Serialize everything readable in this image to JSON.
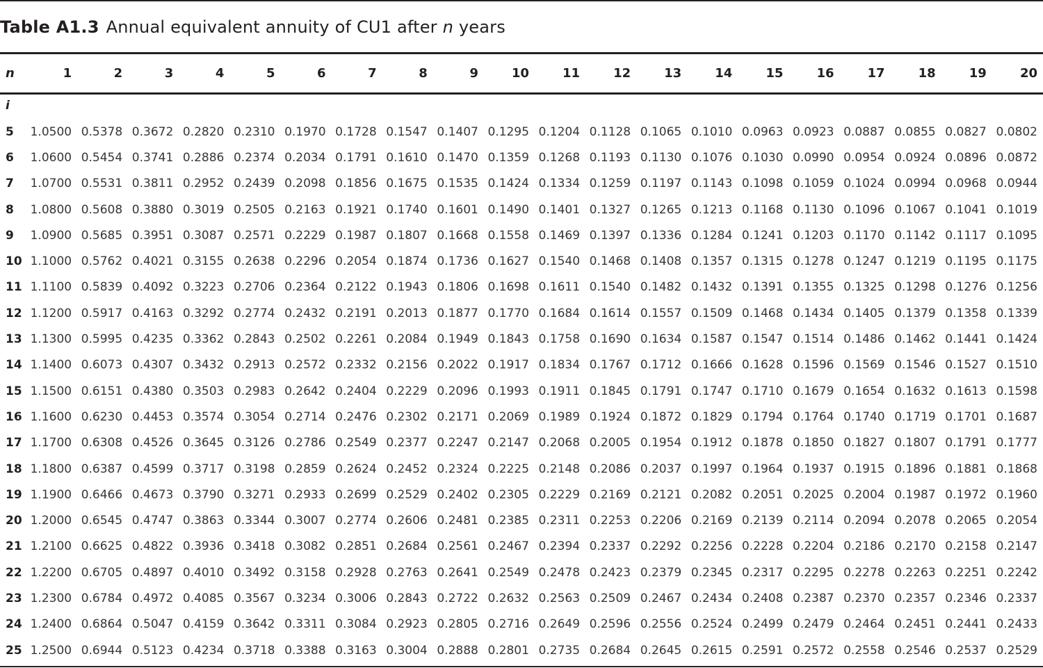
{
  "caption": {
    "label": "Table A1.3",
    "title_prefix": "Annual equivalent annuity of CU1 after",
    "title_var": "n",
    "title_suffix": "years"
  },
  "table": {
    "row_var_label": "n",
    "rate_label": "i",
    "columns": [
      "1",
      "2",
      "3",
      "4",
      "5",
      "6",
      "7",
      "8",
      "9",
      "10",
      "11",
      "12",
      "13",
      "14",
      "15",
      "16",
      "17",
      "18",
      "19",
      "20"
    ],
    "rows": [
      {
        "rate": "5",
        "values": [
          "1.0500",
          "0.5378",
          "0.3672",
          "0.2820",
          "0.2310",
          "0.1970",
          "0.1728",
          "0.1547",
          "0.1407",
          "0.1295",
          "0.1204",
          "0.1128",
          "0.1065",
          "0.1010",
          "0.0963",
          "0.0923",
          "0.0887",
          "0.0855",
          "0.0827",
          "0.0802"
        ]
      },
      {
        "rate": "6",
        "values": [
          "1.0600",
          "0.5454",
          "0.3741",
          "0.2886",
          "0.2374",
          "0.2034",
          "0.1791",
          "0.1610",
          "0.1470",
          "0.1359",
          "0.1268",
          "0.1193",
          "0.1130",
          "0.1076",
          "0.1030",
          "0.0990",
          "0.0954",
          "0.0924",
          "0.0896",
          "0.0872"
        ]
      },
      {
        "rate": "7",
        "values": [
          "1.0700",
          "0.5531",
          "0.3811",
          "0.2952",
          "0.2439",
          "0.2098",
          "0.1856",
          "0.1675",
          "0.1535",
          "0.1424",
          "0.1334",
          "0.1259",
          "0.1197",
          "0.1143",
          "0.1098",
          "0.1059",
          "0.1024",
          "0.0994",
          "0.0968",
          "0.0944"
        ]
      },
      {
        "rate": "8",
        "values": [
          "1.0800",
          "0.5608",
          "0.3880",
          "0.3019",
          "0.2505",
          "0.2163",
          "0.1921",
          "0.1740",
          "0.1601",
          "0.1490",
          "0.1401",
          "0.1327",
          "0.1265",
          "0.1213",
          "0.1168",
          "0.1130",
          "0.1096",
          "0.1067",
          "0.1041",
          "0.1019"
        ]
      },
      {
        "rate": "9",
        "values": [
          "1.0900",
          "0.5685",
          "0.3951",
          "0.3087",
          "0.2571",
          "0.2229",
          "0.1987",
          "0.1807",
          "0.1668",
          "0.1558",
          "0.1469",
          "0.1397",
          "0.1336",
          "0.1284",
          "0.1241",
          "0.1203",
          "0.1170",
          "0.1142",
          "0.1117",
          "0.1095"
        ]
      },
      {
        "rate": "10",
        "values": [
          "1.1000",
          "0.5762",
          "0.4021",
          "0.3155",
          "0.2638",
          "0.2296",
          "0.2054",
          "0.1874",
          "0.1736",
          "0.1627",
          "0.1540",
          "0.1468",
          "0.1408",
          "0.1357",
          "0.1315",
          "0.1278",
          "0.1247",
          "0.1219",
          "0.1195",
          "0.1175"
        ]
      },
      {
        "rate": "11",
        "values": [
          "1.1100",
          "0.5839",
          "0.4092",
          "0.3223",
          "0.2706",
          "0.2364",
          "0.2122",
          "0.1943",
          "0.1806",
          "0.1698",
          "0.1611",
          "0.1540",
          "0.1482",
          "0.1432",
          "0.1391",
          "0.1355",
          "0.1325",
          "0.1298",
          "0.1276",
          "0.1256"
        ]
      },
      {
        "rate": "12",
        "values": [
          "1.1200",
          "0.5917",
          "0.4163",
          "0.3292",
          "0.2774",
          "0.2432",
          "0.2191",
          "0.2013",
          "0.1877",
          "0.1770",
          "0.1684",
          "0.1614",
          "0.1557",
          "0.1509",
          "0.1468",
          "0.1434",
          "0.1405",
          "0.1379",
          "0.1358",
          "0.1339"
        ]
      },
      {
        "rate": "13",
        "values": [
          "1.1300",
          "0.5995",
          "0.4235",
          "0.3362",
          "0.2843",
          "0.2502",
          "0.2261",
          "0.2084",
          "0.1949",
          "0.1843",
          "0.1758",
          "0.1690",
          "0.1634",
          "0.1587",
          "0.1547",
          "0.1514",
          "0.1486",
          "0.1462",
          "0.1441",
          "0.1424"
        ]
      },
      {
        "rate": "14",
        "values": [
          "1.1400",
          "0.6073",
          "0.4307",
          "0.3432",
          "0.2913",
          "0.2572",
          "0.2332",
          "0.2156",
          "0.2022",
          "0.1917",
          "0.1834",
          "0.1767",
          "0.1712",
          "0.1666",
          "0.1628",
          "0.1596",
          "0.1569",
          "0.1546",
          "0.1527",
          "0.1510"
        ]
      },
      {
        "rate": "15",
        "values": [
          "1.1500",
          "0.6151",
          "0.4380",
          "0.3503",
          "0.2983",
          "0.2642",
          "0.2404",
          "0.2229",
          "0.2096",
          "0.1993",
          "0.1911",
          "0.1845",
          "0.1791",
          "0.1747",
          "0.1710",
          "0.1679",
          "0.1654",
          "0.1632",
          "0.1613",
          "0.1598"
        ]
      },
      {
        "rate": "16",
        "values": [
          "1.1600",
          "0.6230",
          "0.4453",
          "0.3574",
          "0.3054",
          "0.2714",
          "0.2476",
          "0.2302",
          "0.2171",
          "0.2069",
          "0.1989",
          "0.1924",
          "0.1872",
          "0.1829",
          "0.1794",
          "0.1764",
          "0.1740",
          "0.1719",
          "0.1701",
          "0.1687"
        ]
      },
      {
        "rate": "17",
        "values": [
          "1.1700",
          "0.6308",
          "0.4526",
          "0.3645",
          "0.3126",
          "0.2786",
          "0.2549",
          "0.2377",
          "0.2247",
          "0.2147",
          "0.2068",
          "0.2005",
          "0.1954",
          "0.1912",
          "0.1878",
          "0.1850",
          "0.1827",
          "0.1807",
          "0.1791",
          "0.1777"
        ]
      },
      {
        "rate": "18",
        "values": [
          "1.1800",
          "0.6387",
          "0.4599",
          "0.3717",
          "0.3198",
          "0.2859",
          "0.2624",
          "0.2452",
          "0.2324",
          "0.2225",
          "0.2148",
          "0.2086",
          "0.2037",
          "0.1997",
          "0.1964",
          "0.1937",
          "0.1915",
          "0.1896",
          "0.1881",
          "0.1868"
        ]
      },
      {
        "rate": "19",
        "values": [
          "1.1900",
          "0.6466",
          "0.4673",
          "0.3790",
          "0.3271",
          "0.2933",
          "0.2699",
          "0.2529",
          "0.2402",
          "0.2305",
          "0.2229",
          "0.2169",
          "0.2121",
          "0.2082",
          "0.2051",
          "0.2025",
          "0.2004",
          "0.1987",
          "0.1972",
          "0.1960"
        ]
      },
      {
        "rate": "20",
        "values": [
          "1.2000",
          "0.6545",
          "0.4747",
          "0.3863",
          "0.3344",
          "0.3007",
          "0.2774",
          "0.2606",
          "0.2481",
          "0.2385",
          "0.2311",
          "0.2253",
          "0.2206",
          "0.2169",
          "0.2139",
          "0.2114",
          "0.2094",
          "0.2078",
          "0.2065",
          "0.2054"
        ]
      },
      {
        "rate": "21",
        "values": [
          "1.2100",
          "0.6625",
          "0.4822",
          "0.3936",
          "0.3418",
          "0.3082",
          "0.2851",
          "0.2684",
          "0.2561",
          "0.2467",
          "0.2394",
          "0.2337",
          "0.2292",
          "0.2256",
          "0.2228",
          "0.2204",
          "0.2186",
          "0.2170",
          "0.2158",
          "0.2147"
        ]
      },
      {
        "rate": "22",
        "values": [
          "1.2200",
          "0.6705",
          "0.4897",
          "0.4010",
          "0.3492",
          "0.3158",
          "0.2928",
          "0.2763",
          "0.2641",
          "0.2549",
          "0.2478",
          "0.2423",
          "0.2379",
          "0.2345",
          "0.2317",
          "0.2295",
          "0.2278",
          "0.2263",
          "0.2251",
          "0.2242"
        ]
      },
      {
        "rate": "23",
        "values": [
          "1.2300",
          "0.6784",
          "0.4972",
          "0.4085",
          "0.3567",
          "0.3234",
          "0.3006",
          "0.2843",
          "0.2722",
          "0.2632",
          "0.2563",
          "0.2509",
          "0.2467",
          "0.2434",
          "0.2408",
          "0.2387",
          "0.2370",
          "0.2357",
          "0.2346",
          "0.2337"
        ]
      },
      {
        "rate": "24",
        "values": [
          "1.2400",
          "0.6864",
          "0.5047",
          "0.4159",
          "0.3642",
          "0.3311",
          "0.3084",
          "0.2923",
          "0.2805",
          "0.2716",
          "0.2649",
          "0.2596",
          "0.2556",
          "0.2524",
          "0.2499",
          "0.2479",
          "0.2464",
          "0.2451",
          "0.2441",
          "0.2433"
        ]
      },
      {
        "rate": "25",
        "values": [
          "1.2500",
          "0.6944",
          "0.5123",
          "0.4234",
          "0.3718",
          "0.3388",
          "0.3163",
          "0.3004",
          "0.2888",
          "0.2801",
          "0.2735",
          "0.2684",
          "0.2645",
          "0.2615",
          "0.2591",
          "0.2572",
          "0.2558",
          "0.2546",
          "0.2537",
          "0.2529"
        ]
      }
    ]
  }
}
